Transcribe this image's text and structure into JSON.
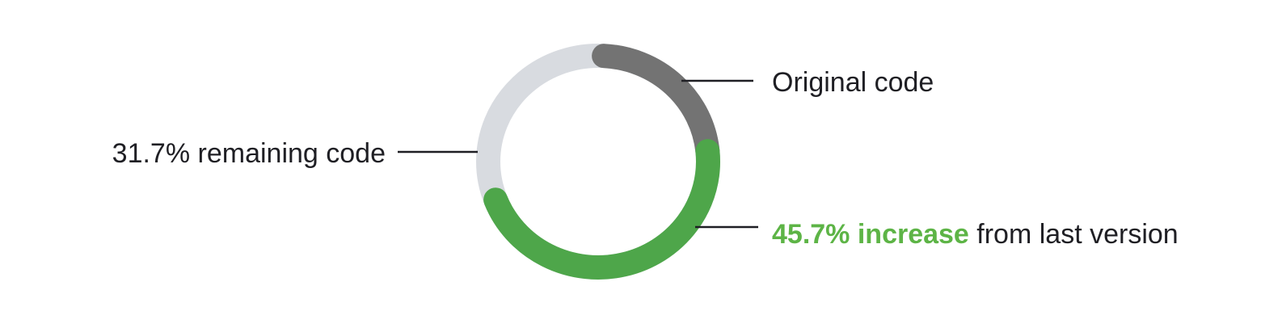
{
  "chart_data": {
    "type": "pie",
    "style": "donut",
    "segments": [
      {
        "name": "Original code",
        "value": 22.6,
        "color": "#737373"
      },
      {
        "name": "increase",
        "value": 45.7,
        "color": "#4ea64a"
      },
      {
        "name": "remaining code",
        "value": 31.7,
        "color": "#d8dbe0"
      }
    ],
    "annotations": {
      "original": {
        "text": "Original code"
      },
      "increase": {
        "value_text": "45.7% increase",
        "rest_text": " from last version",
        "value_color": "#5db446"
      },
      "remaining": {
        "text": "31.7% remaining code"
      }
    },
    "leader_line_color": "#1f1f24",
    "text_color": "#1f1f24"
  }
}
